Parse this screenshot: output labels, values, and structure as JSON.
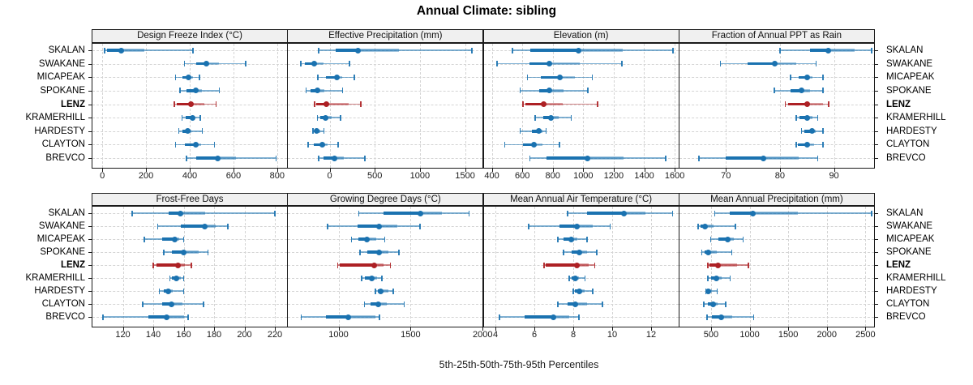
{
  "title": "Annual Climate: sibling",
  "caption": "5th-25th-50th-75th-95th Percentiles",
  "percentile_labels": [
    "5th",
    "25th",
    "50th",
    "75th",
    "95th"
  ],
  "stations": [
    "SKALAN",
    "SWAKANE",
    "MICAPEAK",
    "SPOKANE",
    "LENZ",
    "KRAMERHILL",
    "HARDESTY",
    "CLAYTON",
    "BREVCO"
  ],
  "highlight_station": "LENZ",
  "colors": {
    "series_blue": "#1a72b0",
    "series_red": "#ad2024",
    "strip_bg": "#f0f0f0",
    "grid": "#d4d4d4",
    "border": "#1a1a1a"
  },
  "chart_data": [
    {
      "type": "dot-whisker",
      "title": "Design Freeze Index (°C)",
      "domain": [
        -45,
        845
      ],
      "ticks": [
        0,
        200,
        400,
        600,
        800
      ],
      "tick_labels": [
        "0",
        "200",
        "400",
        "600",
        "800"
      ],
      "series": [
        {
          "name": "SKALAN",
          "values": [
            10,
            20,
            88,
            193,
            415
          ]
        },
        {
          "name": "SWAKANE",
          "values": [
            375,
            430,
            476,
            533,
            655
          ]
        },
        {
          "name": "MICAPEAK",
          "values": [
            335,
            365,
            395,
            415,
            445
          ]
        },
        {
          "name": "SPOKANE",
          "values": [
            355,
            385,
            428,
            455,
            535
          ]
        },
        {
          "name": "LENZ",
          "values": [
            330,
            340,
            405,
            468,
            520
          ]
        },
        {
          "name": "KRAMERHILL",
          "values": [
            365,
            382,
            412,
            424,
            448
          ]
        },
        {
          "name": "HARDESTY",
          "values": [
            350,
            366,
            392,
            406,
            458
          ]
        },
        {
          "name": "CLAYTON",
          "values": [
            335,
            376,
            428,
            452,
            513
          ]
        },
        {
          "name": "BREVCO",
          "values": [
            385,
            428,
            527,
            610,
            795
          ]
        }
      ]
    },
    {
      "type": "dot-whisker",
      "title": "Effective Precipitation (mm)",
      "domain": [
        -460,
        1695
      ],
      "ticks": [
        0,
        500,
        1000,
        1500
      ],
      "tick_labels": [
        "0",
        "500",
        "1000",
        "1500"
      ],
      "series": [
        {
          "name": "SKALAN",
          "values": [
            -120,
            65,
            315,
            770,
            1575
          ]
        },
        {
          "name": "SWAKANE",
          "values": [
            -320,
            -275,
            -172,
            -70,
            220
          ]
        },
        {
          "name": "MICAPEAK",
          "values": [
            -130,
            -45,
            85,
            135,
            275
          ]
        },
        {
          "name": "SPOKANE",
          "values": [
            -260,
            -215,
            -137,
            -55,
            145
          ]
        },
        {
          "name": "LENZ",
          "values": [
            -165,
            -148,
            -40,
            210,
            345
          ]
        },
        {
          "name": "KRAMERHILL",
          "values": [
            -135,
            -105,
            -46,
            20,
            122
          ]
        },
        {
          "name": "HARDESTY",
          "values": [
            -185,
            -170,
            -143,
            -105,
            -65
          ]
        },
        {
          "name": "CLAYTON",
          "values": [
            -240,
            -172,
            -84,
            -25,
            95
          ]
        },
        {
          "name": "BREVCO",
          "values": [
            -120,
            -70,
            58,
            160,
            390
          ]
        }
      ]
    },
    {
      "type": "dot-whisker",
      "title": "Elevation (m)",
      "domain": [
        347,
        1624
      ],
      "ticks": [
        400,
        600,
        800,
        1000,
        1200,
        1400,
        1600
      ],
      "tick_labels": [
        "400",
        "600",
        "800",
        "1000",
        "1200",
        "1400",
        "1600"
      ],
      "series": [
        {
          "name": "SKALAN",
          "values": [
            535,
            650,
            970,
            1260,
            1590
          ]
        },
        {
          "name": "SWAKANE",
          "values": [
            435,
            645,
            775,
            975,
            1255
          ]
        },
        {
          "name": "MICAPEAK",
          "values": [
            635,
            720,
            848,
            945,
            1060
          ]
        },
        {
          "name": "SPOKANE",
          "values": [
            585,
            710,
            780,
            870,
            1030
          ]
        },
        {
          "name": "LENZ",
          "values": [
            605,
            620,
            740,
            865,
            1095
          ]
        },
        {
          "name": "KRAMERHILL",
          "values": [
            685,
            740,
            790,
            840,
            920
          ]
        },
        {
          "name": "HARDESTY",
          "values": [
            585,
            665,
            710,
            730,
            755
          ]
        },
        {
          "name": "CLAYTON",
          "values": [
            485,
            605,
            675,
            730,
            845
          ]
        },
        {
          "name": "BREVCO",
          "values": [
            650,
            760,
            1030,
            1265,
            1540
          ]
        }
      ]
    },
    {
      "type": "dot-whisker",
      "title": "Fraction of Annual PPT as Rain",
      "domain": [
        61.4,
        97.4
      ],
      "ticks": [
        70,
        80,
        90
      ],
      "tick_labels": [
        "70",
        "80",
        "90"
      ],
      "series": [
        {
          "name": "SKALAN",
          "values": [
            80,
            85.5,
            89,
            93.8,
            97
          ]
        },
        {
          "name": "SWAKANE",
          "values": [
            69,
            74,
            79,
            83,
            86.7
          ]
        },
        {
          "name": "MICAPEAK",
          "values": [
            82,
            83.5,
            85,
            86,
            88
          ]
        },
        {
          "name": "SPOKANE",
          "values": [
            79,
            82,
            84,
            85.5,
            88
          ]
        },
        {
          "name": "LENZ",
          "values": [
            81,
            81.5,
            85,
            88,
            89
          ]
        },
        {
          "name": "KRAMERHILL",
          "values": [
            83,
            83.6,
            85,
            86,
            87
          ]
        },
        {
          "name": "HARDESTY",
          "values": [
            84,
            84.5,
            86,
            86.6,
            88
          ]
        },
        {
          "name": "CLAYTON",
          "values": [
            83,
            83.3,
            85,
            86.3,
            88
          ]
        },
        {
          "name": "BREVCO",
          "values": [
            65,
            70,
            77,
            83.5,
            87
          ]
        }
      ]
    },
    {
      "type": "dot-whisker",
      "title": "Frost-Free Days",
      "domain": [
        100,
        228
      ],
      "ticks": [
        120,
        140,
        160,
        180,
        200,
        220
      ],
      "tick_labels": [
        "120",
        "140",
        "160",
        "180",
        "200",
        "220"
      ],
      "series": [
        {
          "name": "SKALAN",
          "values": [
            126,
            150,
            158,
            174,
            220
          ]
        },
        {
          "name": "SWAKANE",
          "values": [
            143,
            158,
            174,
            181,
            189
          ]
        },
        {
          "name": "MICAPEAK",
          "values": [
            134,
            146,
            154,
            157,
            160
          ]
        },
        {
          "name": "SPOKANE",
          "values": [
            147,
            152,
            160,
            170,
            176
          ]
        },
        {
          "name": "LENZ",
          "values": [
            140,
            142,
            156,
            161,
            165
          ]
        },
        {
          "name": "KRAMERHILL",
          "values": [
            151,
            152,
            155,
            158,
            160
          ]
        },
        {
          "name": "HARDESTY",
          "values": [
            144,
            147,
            150,
            153,
            160
          ]
        },
        {
          "name": "CLAYTON",
          "values": [
            133,
            146,
            152,
            159,
            173
          ]
        },
        {
          "name": "BREVCO",
          "values": [
            107,
            137,
            149,
            160,
            163
          ]
        }
      ]
    },
    {
      "type": "dot-whisker",
      "title": "Growing Degree Days (°C)",
      "domain": [
        650,
        2000
      ],
      "ticks": [
        1000,
        1500,
        2000
      ],
      "tick_labels": [
        "1000",
        "1500",
        "2000"
      ],
      "series": [
        {
          "name": "SKALAN",
          "values": [
            1140,
            1310,
            1570,
            1715,
            1905
          ]
        },
        {
          "name": "SWAKANE",
          "values": [
            925,
            1130,
            1280,
            1410,
            1565
          ]
        },
        {
          "name": "MICAPEAK",
          "values": [
            1090,
            1140,
            1195,
            1260,
            1320
          ]
        },
        {
          "name": "SPOKANE",
          "values": [
            1150,
            1200,
            1280,
            1345,
            1420
          ]
        },
        {
          "name": "LENZ",
          "values": [
            995,
            1010,
            1250,
            1310,
            1360
          ]
        },
        {
          "name": "KRAMERHILL",
          "values": [
            1160,
            1185,
            1233,
            1265,
            1300
          ]
        },
        {
          "name": "HARDESTY",
          "values": [
            1255,
            1270,
            1292,
            1345,
            1380
          ]
        },
        {
          "name": "CLAYTON",
          "values": [
            1180,
            1220,
            1275,
            1335,
            1455
          ]
        },
        {
          "name": "BREVCO",
          "values": [
            740,
            915,
            1065,
            1255,
            1285
          ]
        }
      ]
    },
    {
      "type": "dot-whisker",
      "title": "Mean Annual Air Temperature (°C)",
      "domain": [
        3.4,
        13.4
      ],
      "ticks": [
        4,
        6,
        8,
        10,
        12
      ],
      "tick_labels": [
        "4",
        "6",
        "8",
        "10",
        "12"
      ],
      "series": [
        {
          "name": "SKALAN",
          "values": [
            7.7,
            8.7,
            10.6,
            11.7,
            13.1
          ]
        },
        {
          "name": "SWAKANE",
          "values": [
            5.7,
            7.3,
            8.2,
            9.0,
            9.9
          ]
        },
        {
          "name": "MICAPEAK",
          "values": [
            7.2,
            7.5,
            7.9,
            8.2,
            8.7
          ]
        },
        {
          "name": "SPOKANE",
          "values": [
            7.5,
            7.9,
            8.3,
            8.7,
            9.2
          ]
        },
        {
          "name": "LENZ",
          "values": [
            6.5,
            6.6,
            8.2,
            8.8,
            9.1
          ]
        },
        {
          "name": "KRAMERHILL",
          "values": [
            7.8,
            7.9,
            8.1,
            8.3,
            8.6
          ]
        },
        {
          "name": "HARDESTY",
          "values": [
            8.0,
            8.1,
            8.3,
            8.6,
            9.0
          ]
        },
        {
          "name": "CLAYTON",
          "values": [
            7.2,
            7.7,
            8.1,
            8.7,
            9.5
          ]
        },
        {
          "name": "BREVCO",
          "values": [
            4.2,
            5.5,
            7.0,
            7.8,
            8.3
          ]
        }
      ]
    },
    {
      "type": "dot-whisker",
      "title": "Mean Annual Precipitation (mm)",
      "domain": [
        90,
        2610
      ],
      "ticks": [
        500,
        1000,
        1500,
        2000,
        2500
      ],
      "tick_labels": [
        "500",
        "1000",
        "1500",
        "2000",
        "2500"
      ],
      "series": [
        {
          "name": "SKALAN",
          "values": [
            550,
            745,
            1040,
            1620,
            2580
          ]
        },
        {
          "name": "SWAKANE",
          "values": [
            335,
            360,
            425,
            535,
            815
          ]
        },
        {
          "name": "MICAPEAK",
          "values": [
            495,
            595,
            720,
            795,
            915
          ]
        },
        {
          "name": "SPOKANE",
          "values": [
            380,
            415,
            465,
            570,
            770
          ]
        },
        {
          "name": "LENZ",
          "values": [
            460,
            475,
            595,
            840,
            985
          ]
        },
        {
          "name": "KRAMERHILL",
          "values": [
            460,
            500,
            570,
            640,
            745
          ]
        },
        {
          "name": "HARDESTY",
          "values": [
            430,
            440,
            465,
            510,
            580
          ]
        },
        {
          "name": "CLAYTON",
          "values": [
            405,
            460,
            530,
            580,
            690
          ]
        },
        {
          "name": "BREVCO",
          "values": [
            450,
            510,
            630,
            770,
            1050
          ]
        }
      ]
    }
  ]
}
